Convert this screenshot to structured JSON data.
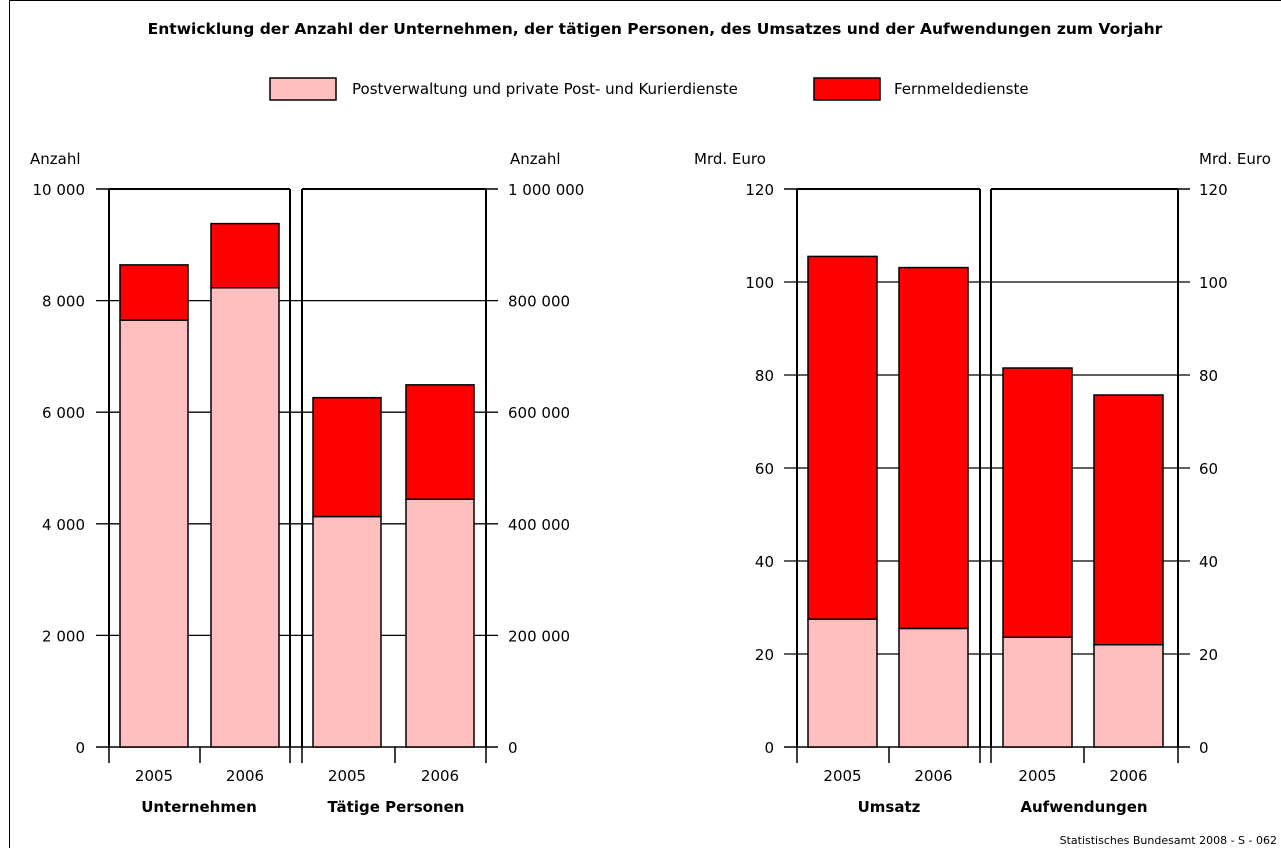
{
  "title": "Entwicklung der Anzahl der Unternehmen, der tätigen Personen, des Umsatzes und der Aufwendungen zum Vorjahr",
  "source": "Statistisches Bundesamt 2008 - S - 062",
  "colors": {
    "post": "#ffbfbf",
    "fernmelde": "#ff0000",
    "outline": "#000000",
    "grid": "#000000"
  },
  "chart_data": [
    {
      "type": "bar",
      "stacked": true,
      "panels": [
        {
          "label": "Unternehmen",
          "categories": [
            "2005",
            "2006"
          ],
          "axis": "left",
          "series": [
            {
              "name": "Postverwaltung und private Post- und Kurierdienste",
              "values": [
                7650,
                8230
              ]
            },
            {
              "name": "Fernmeldedienste",
              "values": [
                990,
                1150
              ]
            }
          ]
        },
        {
          "label": "Tätige Personen",
          "categories": [
            "2005",
            "2006"
          ],
          "axis": "right",
          "series": [
            {
              "name": "Postverwaltung und private Post- und Kurierdienste",
              "values": [
                413000,
                444000
              ]
            },
            {
              "name": "Fernmeldedienste",
              "values": [
                213000,
                205000
              ]
            }
          ]
        }
      ],
      "left_axis": {
        "label": "Anzahl",
        "ylim": [
          0,
          10000
        ],
        "ticks": [
          0,
          2000,
          4000,
          6000,
          8000,
          10000
        ],
        "tick_labels": [
          "0",
          "2 000",
          "4 000",
          "6 000",
          "8 000",
          "10 000"
        ]
      },
      "right_axis": {
        "label": "Anzahl",
        "ylim": [
          0,
          1000000
        ],
        "ticks": [
          0,
          200000,
          400000,
          600000,
          800000,
          1000000
        ],
        "tick_labels": [
          "0",
          "200 000",
          "400 000",
          "600 000",
          "800 000",
          "1 000 000"
        ]
      },
      "grid": true
    },
    {
      "type": "bar",
      "stacked": true,
      "panels": [
        {
          "label": "Umsatz",
          "categories": [
            "2005",
            "2006"
          ],
          "axis": "left",
          "series": [
            {
              "name": "Postverwaltung und private Post- und Kurierdienste",
              "values": [
                27.5,
                25.5
              ]
            },
            {
              "name": "Fernmeldedienste",
              "values": [
                78.0,
                77.6
              ]
            }
          ]
        },
        {
          "label": "Aufwendungen",
          "categories": [
            "2005",
            "2006"
          ],
          "axis": "right",
          "series": [
            {
              "name": "Postverwaltung und private Post- und Kurierdienste",
              "values": [
                23.6,
                22.0
              ]
            },
            {
              "name": "Fernmeldedienste",
              "values": [
                57.9,
                53.7
              ]
            }
          ]
        }
      ],
      "left_axis": {
        "label": "Mrd. Euro",
        "ylim": [
          0,
          120
        ],
        "ticks": [
          0,
          20,
          40,
          60,
          80,
          100,
          120
        ],
        "tick_labels": [
          "0",
          "20",
          "40",
          "60",
          "80",
          "100",
          "120"
        ]
      },
      "right_axis": {
        "label": "Mrd. Euro",
        "ylim": [
          0,
          120
        ],
        "ticks": [
          0,
          20,
          40,
          60,
          80,
          100,
          120
        ],
        "tick_labels": [
          "0",
          "20",
          "40",
          "60",
          "80",
          "100",
          "120"
        ]
      },
      "grid": true
    }
  ],
  "legend": [
    {
      "name": "Postverwaltung und private Post- und Kurierdienste",
      "color": "#ffbfbf"
    },
    {
      "name": "Fernmeldedienste",
      "color": "#ff0000"
    }
  ]
}
